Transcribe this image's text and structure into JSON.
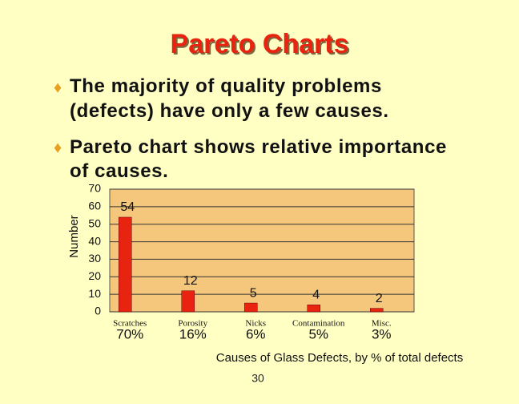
{
  "slide": {
    "title": "Pareto Charts",
    "bullets": [
      {
        "lines": [
          "The majority of quality problems",
          "(defects) have only a few causes."
        ]
      },
      {
        "lines": [
          "Pareto chart shows relative importance",
          "of causes."
        ]
      }
    ],
    "page_number": "30"
  },
  "chart_data": {
    "type": "bar",
    "categories": [
      "Scratches",
      "Porosity",
      "Nicks",
      "Contamination",
      "Misc."
    ],
    "values": [
      54,
      12,
      5,
      4,
      2
    ],
    "percent_labels": [
      "70%",
      "16%",
      "6%",
      "5%",
      "3%"
    ],
    "color": "#e8230f",
    "plot_background": "#f5c77c",
    "y_label": "Number",
    "x_label": "Causes of Glass Defects, by % of total defects",
    "ylim": [
      0,
      70
    ],
    "yticks": [
      0,
      10,
      20,
      30,
      40,
      50,
      60,
      70
    ],
    "grid": true
  }
}
